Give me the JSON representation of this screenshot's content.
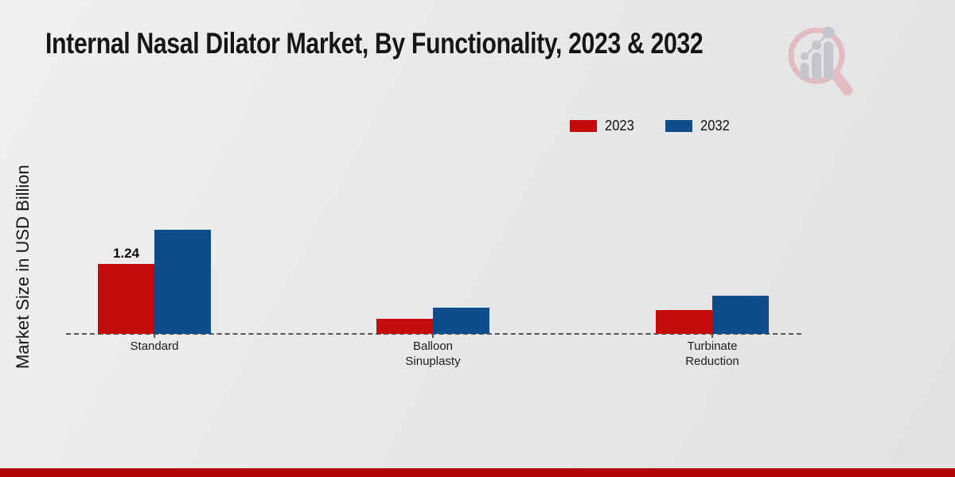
{
  "title": "Internal Nasal Dilator Market, By Functionality, 2023 & 2032",
  "watermark_icon": "market-research-future-logo",
  "colors": {
    "series_2023_red": "#c40a0a",
    "series_2032_blue": "#0f4c8a",
    "footer_bar_red": "#b30505",
    "axis_dash_gray": "#565656"
  },
  "chart_data": {
    "type": "bar",
    "title": "Internal Nasal Dilator Market, By Functionality, 2023 & 2032",
    "xlabel": "",
    "ylabel": "Market Size in USD Billion",
    "categories": [
      "Standard",
      "Balloon Sinuplasty",
      "Turbinate Reduction"
    ],
    "series": [
      {
        "name": "2023",
        "color": "#c40a0a",
        "values": [
          1.24,
          0.27,
          0.42
        ],
        "data_labels": [
          "1.24",
          "",
          ""
        ]
      },
      {
        "name": "2032",
        "color": "#0f4c8a",
        "values": [
          1.84,
          0.46,
          0.68
        ],
        "data_labels": [
          "",
          "",
          ""
        ]
      }
    ],
    "ylim": [
      0,
      2.6
    ],
    "grid": false,
    "legend_position": "top-right",
    "baseline_style": "dashed",
    "note": "Only the 2023 Standard bar carries a printed value label (1.24); other values estimated from bar heights."
  }
}
